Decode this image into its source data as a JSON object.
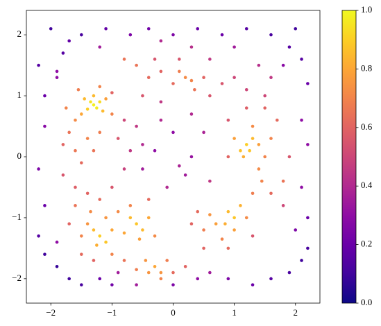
{
  "chart_data": {
    "type": "scatter",
    "colormap": "plasma",
    "x": [
      -1.3,
      -1.25,
      -1.35,
      -1.2,
      -1.4,
      -1.15,
      -1.45,
      -1.3,
      -1.1,
      -1.5,
      -1.6,
      -1.7,
      -1.75,
      -1.55,
      -1.2,
      -1.0,
      -1.0,
      -1.8,
      -1.6,
      -1.4,
      -1.3,
      -1.2,
      -1.5,
      -1.8,
      -1.6,
      -1.4,
      -1.2,
      -1.0,
      -0.9,
      -0.8,
      -0.6,
      -0.7,
      -0.8,
      -1.2,
      -1.1,
      -1.3,
      -1.0,
      -1.25,
      -1.4,
      -1.5,
      -1.35,
      -1.1,
      -1.6,
      -1.7,
      -1.5,
      -1.3,
      -1.0,
      -0.6,
      -0.5,
      -0.7,
      -0.4,
      -0.8,
      -0.55,
      -0.3,
      -0.7,
      -0.9,
      -0.4,
      -0.3,
      -0.4,
      -0.2,
      -0.45,
      -0.1,
      -0.6,
      0,
      0.2,
      -0.8,
      -0.2,
      1.0,
      0.9,
      1.1,
      0.85,
      0.7,
      1.0,
      0.6,
      1.2,
      0.5,
      0.8,
      0.4,
      0.3,
      0.5,
      0.9,
      1.3,
      1.45,
      1.3,
      1.2,
      1.1,
      1.3,
      1.15,
      1.25,
      1.0,
      1.4,
      1.3,
      1.5,
      1.6,
      1.4,
      1.8,
      1.7,
      1.5,
      1.2,
      0.9,
      0.9,
      1.9,
      1.8,
      1.6,
      0.2,
      0.3,
      0.1,
      0.35,
      0,
      0.5,
      0.6,
      0.8,
      1.0,
      1.2,
      -0.2,
      -0.4,
      -0.6,
      -0.8,
      -0.5,
      -0.3,
      0.1,
      0.6,
      -0.2,
      1.5,
      1.6,
      1.4,
      0,
      -0.3,
      0.3,
      0.2,
      -0.5,
      0.5,
      -0.1,
      0.3,
      -0.2,
      0.6,
      -0.5,
      0.1,
      -2.0,
      -2.2,
      -2.1,
      -2.1,
      -2.2,
      -2.1,
      -2.2,
      -2.1,
      -1.9,
      -1.7,
      -1.5,
      -1.2,
      -1.0,
      -0.9,
      -0.6,
      0,
      0.4,
      0.6,
      0.9,
      1.3,
      1.6,
      1.9,
      2.1,
      2.2,
      2.2,
      2.1,
      2.2,
      2.1,
      2.2,
      2.1,
      1.9,
      1.6,
      1.2,
      0.8,
      0.4,
      0,
      -0.4,
      -0.7,
      -1.1,
      -1.5,
      -1.8,
      -1.9,
      -0.2,
      0.3,
      -1.9,
      1.8,
      2.0,
      -1.9,
      -1.7,
      2.0,
      1.0,
      -1.2
    ],
    "values": [
      0.85,
      0.8,
      0.9,
      0.9,
      0.78,
      0.75,
      0.95,
      1.0,
      0.95,
      0.7,
      0.6,
      0.4,
      0.8,
      1.1,
      1.15,
      0.7,
      1.05,
      0.2,
      0.1,
      0.3,
      0.1,
      0.4,
      -0.1,
      -0.3,
      -0.5,
      -0.6,
      -0.7,
      -0.5,
      0.3,
      0.6,
      0.5,
      0.1,
      -0.2,
      -1.3,
      -1.4,
      -1.2,
      -1.2,
      -1.45,
      -1.1,
      -1.3,
      -0.9,
      -1.0,
      -0.8,
      -1.1,
      -1.6,
      -1.7,
      -1.6,
      -1.1,
      -1.2,
      -1.0,
      -1.0,
      -1.25,
      -1.35,
      -1.3,
      -0.8,
      -0.9,
      -0.7,
      -1.8,
      -1.9,
      -1.9,
      -1.7,
      -1.7,
      -1.85,
      -1.9,
      -1.8,
      -1.7,
      -2.0,
      -1.0,
      -0.9,
      -0.8,
      -1.1,
      -1.1,
      -1.2,
      -0.95,
      -1.0,
      -1.2,
      -1.35,
      -0.9,
      -1.1,
      -1.5,
      -1.5,
      -0.6,
      -0.4,
      -1.3,
      0.2,
      0.1,
      0.3,
      0,
      0.1,
      0.3,
      0.2,
      0.5,
      0,
      0.3,
      -0.2,
      -0.4,
      0.6,
      0.8,
      0.8,
      0.6,
      0,
      0,
      -0.8,
      -0.6,
      1.3,
      1.25,
      1.4,
      1.1,
      1.2,
      1.3,
      1.0,
      1.2,
      1.3,
      1.1,
      1.4,
      1.3,
      1.5,
      1.6,
      1.0,
      1.6,
      1.6,
      1.6,
      0.9,
      1.0,
      1.3,
      1.5,
      0.4,
      0.1,
      0,
      -0.3,
      -0.2,
      0.4,
      -0.5,
      0.7,
      0.6,
      -0.4,
      0.2,
      -0.15,
      2.1,
      1.5,
      1.0,
      0.5,
      -0.2,
      -0.8,
      -1.3,
      -1.6,
      -1.8,
      -2.0,
      -2.1,
      -2.0,
      -2.1,
      -1.9,
      -2.1,
      -2.1,
      -2.0,
      -1.9,
      -2.0,
      -2.1,
      -2.0,
      -1.9,
      -1.7,
      -1.5,
      -1.0,
      -0.5,
      0.2,
      0.6,
      1.2,
      1.6,
      1.8,
      2.0,
      2.1,
      2.0,
      2.1,
      2.0,
      2.1,
      2.0,
      2.1,
      2.0,
      1.7,
      1.3,
      1.9,
      1.8,
      1.4,
      1.5,
      -1.2,
      -1.4,
      1.9,
      2.1,
      1.8,
      1.8
    ],
    "color_values": [
      0.98,
      0.97,
      0.95,
      0.93,
      0.9,
      0.85,
      0.85,
      0.85,
      0.78,
      0.8,
      0.72,
      0.65,
      0.7,
      0.68,
      0.7,
      0.7,
      0.6,
      0.6,
      0.66,
      0.7,
      0.65,
      0.68,
      0.62,
      0.55,
      0.58,
      0.6,
      0.62,
      0.55,
      0.55,
      0.5,
      0.45,
      0.45,
      0.48,
      0.9,
      0.88,
      0.85,
      0.8,
      0.82,
      0.75,
      0.7,
      0.72,
      0.75,
      0.65,
      0.6,
      0.62,
      0.6,
      0.7,
      0.88,
      0.85,
      0.85,
      0.8,
      0.8,
      0.78,
      0.72,
      0.7,
      0.72,
      0.62,
      0.8,
      0.75,
      0.75,
      0.75,
      0.68,
      0.68,
      0.62,
      0.6,
      0.65,
      0.7,
      0.88,
      0.85,
      0.83,
      0.82,
      0.78,
      0.78,
      0.75,
      0.72,
      0.68,
      0.7,
      0.62,
      0.6,
      0.6,
      0.62,
      0.68,
      0.7,
      0.55,
      0.9,
      0.87,
      0.85,
      0.82,
      0.88,
      0.78,
      0.78,
      0.72,
      0.7,
      0.7,
      0.72,
      0.65,
      0.62,
      0.6,
      0.58,
      0.55,
      0.6,
      0.55,
      0.5,
      0.62,
      0.72,
      0.7,
      0.68,
      0.65,
      0.62,
      0.6,
      0.55,
      0.55,
      0.5,
      0.5,
      0.6,
      0.62,
      0.65,
      0.65,
      0.55,
      0.55,
      0.55,
      0.45,
      0.45,
      0.5,
      0.45,
      0.42,
      0.3,
      0.3,
      0.32,
      0.35,
      0.35,
      0.38,
      0.4,
      0.4,
      0.4,
      0.45,
      0.4,
      0.38,
      0.1,
      0.15,
      0.2,
      0.28,
      0.25,
      0.2,
      0.15,
      0.1,
      0.08,
      0.1,
      0.12,
      0.2,
      0.22,
      0.35,
      0.35,
      0.25,
      0.3,
      0.35,
      0.25,
      0.2,
      0.15,
      0.12,
      0.1,
      0.12,
      0.2,
      0.3,
      0.3,
      0.3,
      0.2,
      0.15,
      0.15,
      0.12,
      0.15,
      0.2,
      0.2,
      0.25,
      0.22,
      0.25,
      0.18,
      0.12,
      0.15,
      0.3,
      0.4,
      0.42,
      0.3,
      0.28,
      0.25,
      0.3,
      0.18,
      0.1,
      0.35,
      0.35
    ],
    "xlim": [
      -2.4,
      2.4
    ],
    "ylim": [
      -2.4,
      2.4
    ],
    "xticks": [
      {
        "value": -2,
        "label": "−2"
      },
      {
        "value": -1,
        "label": "−1"
      },
      0,
      1,
      2
    ],
    "yticks": [
      {
        "value": -2,
        "label": "−2"
      },
      {
        "value": -1,
        "label": "−1"
      },
      0,
      1,
      2
    ],
    "clim": [
      0,
      1
    ],
    "cticks": [
      {
        "value": 0,
        "label": "0.0"
      },
      {
        "value": 0.2,
        "label": "0.2"
      },
      {
        "value": 0.4,
        "label": "0.4"
      },
      {
        "value": 0.6,
        "label": "0.6"
      },
      {
        "value": 0.8,
        "label": "0.8"
      },
      {
        "value": 1,
        "label": "1.0"
      }
    ]
  }
}
